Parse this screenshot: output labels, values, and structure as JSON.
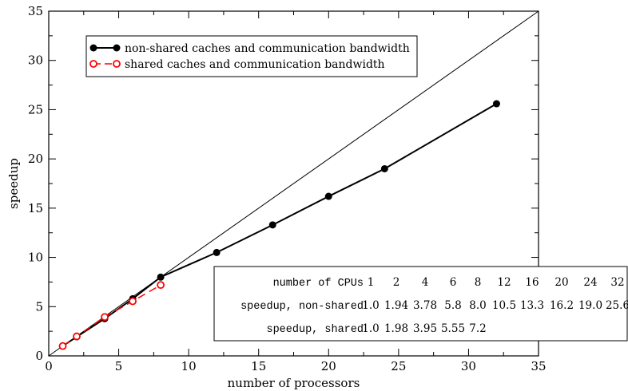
{
  "chart_data": {
    "type": "line",
    "xlabel": "number of processors",
    "ylabel": "speedup",
    "xlim": [
      0,
      35
    ],
    "ylim": [
      0,
      35
    ],
    "x_ticks": [
      0,
      5,
      10,
      15,
      20,
      25,
      30,
      35
    ],
    "y_ticks": [
      0,
      5,
      10,
      15,
      20,
      25,
      30,
      35
    ],
    "grid": false,
    "legend_position": "top-left",
    "reference_line": {
      "x": [
        0,
        35
      ],
      "y": [
        0,
        35
      ],
      "color": "#000000"
    },
    "series": [
      {
        "name": "non-shared caches and communication bandwidth",
        "x": [
          1,
          2,
          4,
          6,
          8,
          12,
          16,
          20,
          24,
          32
        ],
        "y": [
          1.0,
          1.94,
          3.78,
          5.8,
          8.0,
          10.5,
          13.3,
          16.2,
          19.0,
          25.6
        ],
        "color": "#000000",
        "marker": "filled-circle",
        "line_style": "solid"
      },
      {
        "name": "shared caches and communication bandwidth",
        "x": [
          1,
          2,
          4,
          6,
          8
        ],
        "y": [
          1.0,
          1.98,
          3.95,
          5.55,
          7.2
        ],
        "color": "#ff0000",
        "marker": "open-circle",
        "line_style": "dashed"
      }
    ],
    "table": {
      "rows": [
        {
          "label": "number of CPUs",
          "values": [
            "1",
            "2",
            "4",
            "6",
            "8",
            "12",
            "16",
            "20",
            "24",
            "32"
          ]
        },
        {
          "label": "speedup, non-shared",
          "values": [
            "1.0",
            "1.94",
            "3.78",
            "5.8",
            "8.0",
            "10.5",
            "13.3",
            "16.2",
            "19.0",
            "25.6"
          ]
        },
        {
          "label": "speedup, shared",
          "values": [
            "1.0",
            "1.98",
            "3.95",
            "5.55",
            "7.2"
          ]
        }
      ]
    }
  }
}
